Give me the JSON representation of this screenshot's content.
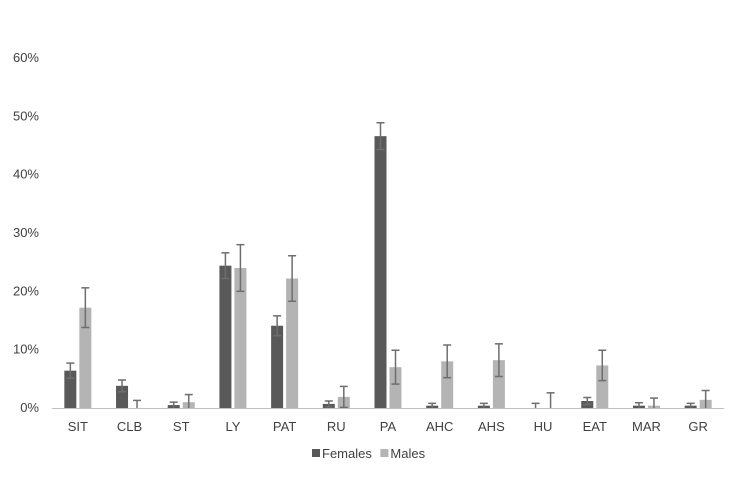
{
  "chart_data": {
    "type": "bar",
    "title": "",
    "xlabel": "",
    "ylabel": "",
    "ylim": [
      0,
      60
    ],
    "y_ticks": [
      "0%",
      "10%",
      "20%",
      "30%",
      "40%",
      "50%",
      "60%"
    ],
    "y_tick_values": [
      0,
      10,
      20,
      30,
      40,
      50,
      60
    ],
    "grid": false,
    "legend_position": "bottom",
    "categories": [
      "SIT",
      "CLB",
      "ST",
      "LY",
      "PAT",
      "RU",
      "PA",
      "AHC",
      "AHS",
      "HU",
      "EAT",
      "MAR",
      "GR"
    ],
    "series": [
      {
        "name": "Females",
        "color": "#595959",
        "values": [
          6.4,
          3.8,
          0.5,
          24.4,
          14.1,
          0.7,
          46.6,
          0.4,
          0.4,
          0.0,
          1.2,
          0.4,
          0.4
        ],
        "errors": [
          1.3,
          1.0,
          0.5,
          2.2,
          1.7,
          0.5,
          2.3,
          0.4,
          0.4,
          0.8,
          0.6,
          0.5,
          0.4
        ]
      },
      {
        "name": "Males",
        "color": "#b4b4b4",
        "values": [
          17.2,
          0.0,
          1.0,
          24.0,
          22.2,
          1.9,
          7.0,
          8.0,
          8.2,
          0.0,
          7.3,
          0.4,
          1.4
        ],
        "errors": [
          3.4,
          1.3,
          1.3,
          4.0,
          3.9,
          1.8,
          2.9,
          2.8,
          2.8,
          2.6,
          2.6,
          1.3,
          1.6
        ]
      }
    ]
  }
}
